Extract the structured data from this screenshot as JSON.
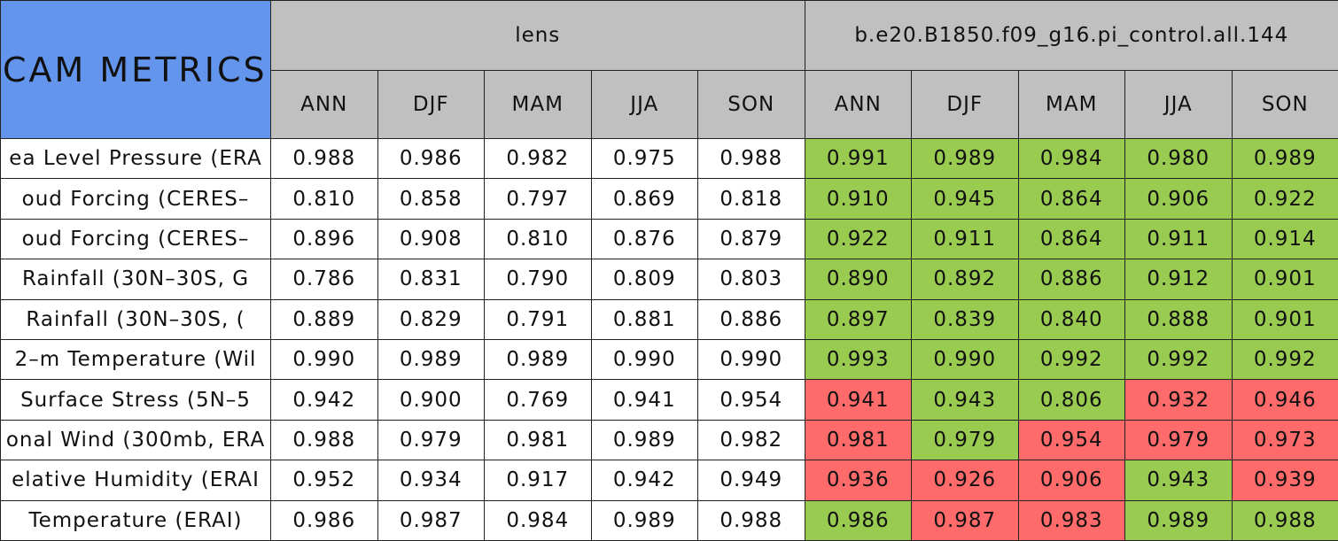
{
  "header": {
    "title": "CAM METRICS",
    "groups": [
      {
        "name": "lens",
        "seasons": [
          "ANN",
          "DJF",
          "MAM",
          "JJA",
          "SON"
        ]
      },
      {
        "name": "b.e20.B1850.f09_g16.pi_control.all.144",
        "seasons": [
          "ANN",
          "DJF",
          "MAM",
          "JJA",
          "SON"
        ]
      }
    ]
  },
  "rows": [
    {
      "label": "ea Level Pressure (ERA",
      "cells": [
        {
          "text": "0.988"
        },
        {
          "text": "0.986"
        },
        {
          "text": "0.982"
        },
        {
          "text": "0.975"
        },
        {
          "text": "0.988"
        },
        {
          "text": "0.991",
          "color": "#9acb51"
        },
        {
          "text": "0.989",
          "color": "#9acb51"
        },
        {
          "text": "0.984",
          "color": "#9acb51"
        },
        {
          "text": "0.980",
          "color": "#9acb51"
        },
        {
          "text": "0.989",
          "color": "#9acb51"
        }
      ]
    },
    {
      "label": "oud Forcing (CERES–",
      "cells": [
        {
          "text": "0.810"
        },
        {
          "text": "0.858"
        },
        {
          "text": "0.797"
        },
        {
          "text": "0.869"
        },
        {
          "text": "0.818"
        },
        {
          "text": "0.910",
          "color": "#9acb51"
        },
        {
          "text": "0.945",
          "color": "#9acb51"
        },
        {
          "text": "0.864",
          "color": "#9acb51"
        },
        {
          "text": "0.906",
          "color": "#9acb51"
        },
        {
          "text": "0.922",
          "color": "#9acb51"
        }
      ]
    },
    {
      "label": "oud Forcing (CERES–",
      "cells": [
        {
          "text": "0.896"
        },
        {
          "text": "0.908"
        },
        {
          "text": "0.810"
        },
        {
          "text": "0.876"
        },
        {
          "text": "0.879"
        },
        {
          "text": "0.922",
          "color": "#9acb51"
        },
        {
          "text": "0.911",
          "color": "#9acb51"
        },
        {
          "text": "0.864",
          "color": "#9acb51"
        },
        {
          "text": "0.911",
          "color": "#9acb51"
        },
        {
          "text": "0.914",
          "color": "#9acb51"
        }
      ]
    },
    {
      "label": "Rainfall (30N–30S, G",
      "cells": [
        {
          "text": "0.786"
        },
        {
          "text": "0.831"
        },
        {
          "text": "0.790"
        },
        {
          "text": "0.809"
        },
        {
          "text": "0.803"
        },
        {
          "text": "0.890",
          "color": "#9acb51"
        },
        {
          "text": "0.892",
          "color": "#9acb51"
        },
        {
          "text": "0.886",
          "color": "#9acb51"
        },
        {
          "text": "0.912",
          "color": "#9acb51"
        },
        {
          "text": "0.901",
          "color": "#9acb51"
        }
      ]
    },
    {
      "label": "Rainfall (30N–30S, (",
      "cells": [
        {
          "text": "0.889"
        },
        {
          "text": "0.829"
        },
        {
          "text": "0.791"
        },
        {
          "text": "0.881"
        },
        {
          "text": "0.886"
        },
        {
          "text": "0.897",
          "color": "#9acb51"
        },
        {
          "text": "0.839",
          "color": "#9acb51"
        },
        {
          "text": "0.840",
          "color": "#9acb51"
        },
        {
          "text": "0.888",
          "color": "#9acb51"
        },
        {
          "text": "0.901",
          "color": "#9acb51"
        }
      ]
    },
    {
      "label": "2–m Temperature (Wil",
      "cells": [
        {
          "text": "0.990"
        },
        {
          "text": "0.989"
        },
        {
          "text": "0.989"
        },
        {
          "text": "0.990"
        },
        {
          "text": "0.990"
        },
        {
          "text": "0.993",
          "color": "#9acb51"
        },
        {
          "text": "0.990",
          "color": "#9acb51"
        },
        {
          "text": "0.992",
          "color": "#9acb51"
        },
        {
          "text": "0.992",
          "color": "#9acb51"
        },
        {
          "text": "0.992",
          "color": "#9acb51"
        }
      ]
    },
    {
      "label": "Surface Stress (5N–5",
      "cells": [
        {
          "text": "0.942"
        },
        {
          "text": "0.900"
        },
        {
          "text": "0.769"
        },
        {
          "text": "0.941"
        },
        {
          "text": "0.954"
        },
        {
          "text": "0.941",
          "color": "#ff6b6b"
        },
        {
          "text": "0.943",
          "color": "#9acb51"
        },
        {
          "text": "0.806",
          "color": "#9acb51"
        },
        {
          "text": "0.932",
          "color": "#ff6b6b"
        },
        {
          "text": "0.946",
          "color": "#ff6b6b"
        }
      ]
    },
    {
      "label": "onal Wind (300mb, ERA",
      "cells": [
        {
          "text": "0.988"
        },
        {
          "text": "0.979"
        },
        {
          "text": "0.981"
        },
        {
          "text": "0.989"
        },
        {
          "text": "0.982"
        },
        {
          "text": "0.981",
          "color": "#ff6b6b"
        },
        {
          "text": "0.979",
          "color": "#9acb51"
        },
        {
          "text": "0.954",
          "color": "#ff6b6b"
        },
        {
          "text": "0.979",
          "color": "#ff6b6b"
        },
        {
          "text": "0.973",
          "color": "#ff6b6b"
        }
      ]
    },
    {
      "label": "elative Humidity (ERAI",
      "cells": [
        {
          "text": "0.952"
        },
        {
          "text": "0.934"
        },
        {
          "text": "0.917"
        },
        {
          "text": "0.942"
        },
        {
          "text": "0.949"
        },
        {
          "text": "0.936",
          "color": "#ff6b6b"
        },
        {
          "text": "0.926",
          "color": "#ff6b6b"
        },
        {
          "text": "0.906",
          "color": "#ff6b6b"
        },
        {
          "text": "0.943",
          "color": "#9acb51"
        },
        {
          "text": "0.939",
          "color": "#ff6b6b"
        }
      ]
    },
    {
      "label": "Temperature (ERAI)",
      "cells": [
        {
          "text": "0.986"
        },
        {
          "text": "0.987"
        },
        {
          "text": "0.984"
        },
        {
          "text": "0.989"
        },
        {
          "text": "0.988"
        },
        {
          "text": "0.986",
          "color": "#9acb51"
        },
        {
          "text": "0.987",
          "color": "#ff6b6b"
        },
        {
          "text": "0.983",
          "color": "#ff6b6b"
        },
        {
          "text": "0.989",
          "color": "#9acb51"
        },
        {
          "text": "0.988",
          "color": "#9acb51"
        }
      ]
    }
  ]
}
